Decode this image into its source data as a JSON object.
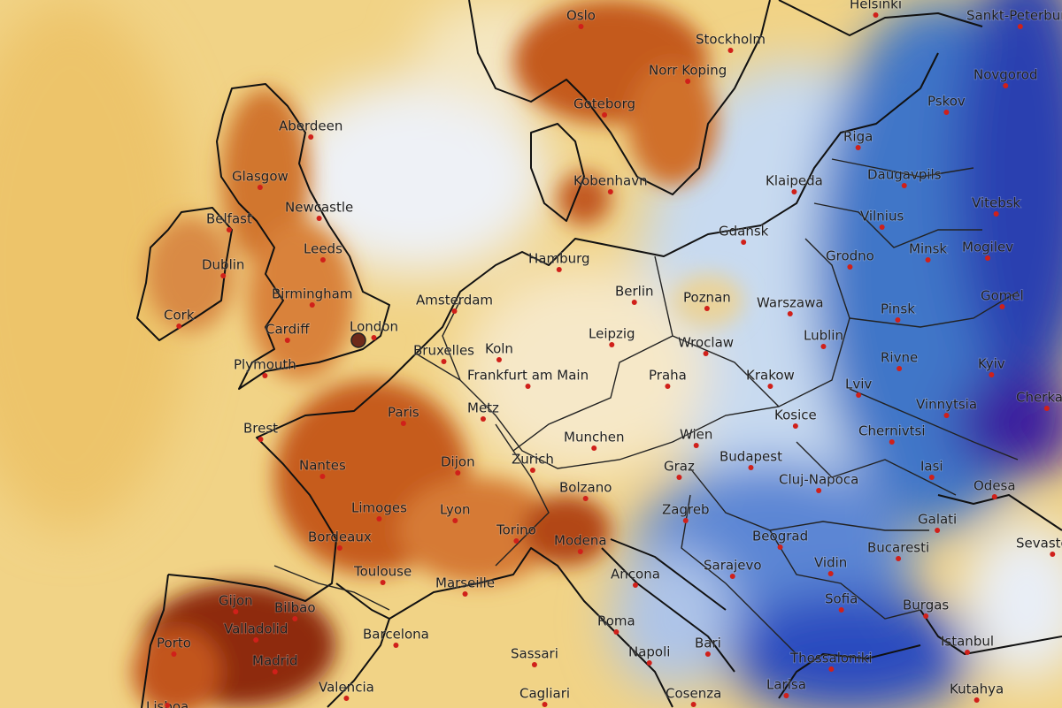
{
  "cities": [
    "Oslo",
    "Helsinki",
    "Sankt-Peterburg",
    "Stockholm",
    "Novgorod",
    "Norr Koping",
    "Pskov",
    "Aberdeen",
    "Goteborg",
    "Riga",
    "Glasgow",
    "Klaipeda",
    "Daugavpils",
    "Kobenhavn",
    "Vitebsk",
    "Newcastle",
    "Belfast",
    "Vilnius",
    "Gdansk",
    "Leeds",
    "Minsk",
    "Mogilev",
    "Dublin",
    "Hamburg",
    "Grodno",
    "Berlin",
    "Poznan",
    "Amsterdam",
    "Birmingham",
    "Warszawa",
    "Pinsk",
    "Gomel",
    "Cork",
    "Cardiff",
    "London",
    "Leipzig",
    "Lublin",
    "Wroclaw",
    "Bruxelles",
    "Koln",
    "Rivne",
    "Kyiv",
    "Plymouth",
    "Frankfurt am Main",
    "Praha",
    "Krakow",
    "Lviv",
    "Cherkasy",
    "Paris",
    "Metz",
    "Vinnytsia",
    "Kosice",
    "Brest",
    "Chernivtsi",
    "Munchen",
    "Wien",
    "Budapest",
    "Nantes",
    "Dijon",
    "Zurich",
    "Graz",
    "Iasi",
    "Cluj-Napoca",
    "Bolzano",
    "Odesa",
    "Limoges",
    "Lyon",
    "Zagreb",
    "Galati",
    "Bordeaux",
    "Torino",
    "Modena",
    "Beograd",
    "Bucaresti",
    "Sevastopol",
    "Toulouse",
    "Sarajevo",
    "Vidin",
    "Ancona",
    "Marseille",
    "Gijon",
    "Bilbao",
    "Sofia",
    "Burgas",
    "Valladolid",
    "Porto",
    "Roma",
    "Barcelona",
    "Bari",
    "Istanbul",
    "Napoli",
    "Sassari",
    "Thessaloniki",
    "Madrid",
    "Valencia",
    "Cagliari",
    "Cosenza",
    "Larisa",
    "Kutahya",
    "Lisboa"
  ]
}
